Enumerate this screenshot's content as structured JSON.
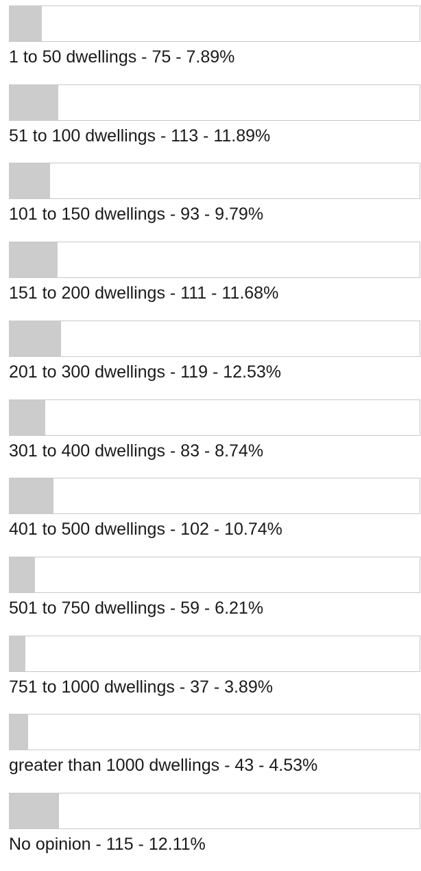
{
  "results": [
    {
      "label": "1 to 50 dwellings - 75 - 7.89%",
      "value": 7.89
    },
    {
      "label": "51 to 100 dwellings - 113 - 11.89%",
      "value": 11.89
    },
    {
      "label": "101 to 150 dwellings - 93 - 9.79%",
      "value": 9.79
    },
    {
      "label": "151 to 200 dwellings - 111 - 11.68%",
      "value": 11.68
    },
    {
      "label": "201 to 300 dwellings - 119 - 12.53%",
      "value": 12.53
    },
    {
      "label": "301 to 400 dwellings - 83 - 8.74%",
      "value": 8.74
    },
    {
      "label": "401 to 500 dwellings - 102 - 10.74%",
      "value": 10.74
    },
    {
      "label": "501 to 750 dwellings - 59 - 6.21%",
      "value": 6.21
    },
    {
      "label": "751 to 1000 dwellings - 37 - 3.89%",
      "value": 3.89
    },
    {
      "label": "greater than 1000 dwellings - 43 - 4.53%",
      "value": 4.53
    },
    {
      "label": "No opinion - 115 - 12.11%",
      "value": 12.11
    }
  ]
}
